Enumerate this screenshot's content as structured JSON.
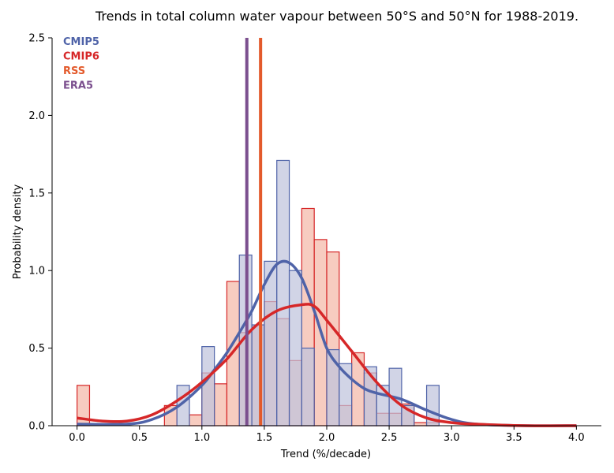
{
  "chart_data": {
    "type": "histogram",
    "title": "Trends in total column water vapour between 50°S and 50°N for 1988-2019.",
    "xlabel": "Trend (%/decade)",
    "ylabel": "Probability density",
    "xlim": [
      -0.2,
      4.2
    ],
    "ylim": [
      0,
      2.5
    ],
    "x_ticks": [
      "0.0",
      "0.5",
      "1.0",
      "1.5",
      "2.0",
      "2.5",
      "3.0",
      "3.5",
      "4.0"
    ],
    "y_ticks": [
      "0.0",
      "0.5",
      "1.0",
      "1.5",
      "2.0",
      "2.5"
    ],
    "bin_width": 0.1,
    "legend": {
      "position": "top-left"
    },
    "series": [
      {
        "name": "CMIP6",
        "color": "#d62728",
        "fill": "#f4b8a8",
        "bins": [
          {
            "x": 0.0,
            "v": 0.26
          },
          {
            "x": 0.7,
            "v": 0.13
          },
          {
            "x": 0.9,
            "v": 0.07
          },
          {
            "x": 1.0,
            "v": 0.34
          },
          {
            "x": 1.1,
            "v": 0.27
          },
          {
            "x": 1.2,
            "v": 0.93
          },
          {
            "x": 1.3,
            "v": 0.6
          },
          {
            "x": 1.4,
            "v": 0.65
          },
          {
            "x": 1.5,
            "v": 0.8
          },
          {
            "x": 1.6,
            "v": 0.69
          },
          {
            "x": 1.7,
            "v": 0.42
          },
          {
            "x": 1.8,
            "v": 1.4
          },
          {
            "x": 1.9,
            "v": 1.2
          },
          {
            "x": 2.0,
            "v": 1.12
          },
          {
            "x": 2.1,
            "v": 0.13
          },
          {
            "x": 2.2,
            "v": 0.47
          },
          {
            "x": 2.3,
            "v": 0.34
          },
          {
            "x": 2.4,
            "v": 0.08
          },
          {
            "x": 2.5,
            "v": 0.08
          },
          {
            "x": 2.6,
            "v": 0.14
          },
          {
            "x": 2.7,
            "v": 0.02
          },
          {
            "x": 2.8,
            "v": 0.02
          }
        ],
        "kde": [
          [
            -0.0,
            0.05
          ],
          [
            0.2,
            0.03
          ],
          [
            0.4,
            0.03
          ],
          [
            0.6,
            0.07
          ],
          [
            0.8,
            0.16
          ],
          [
            1.0,
            0.28
          ],
          [
            1.2,
            0.43
          ],
          [
            1.4,
            0.62
          ],
          [
            1.6,
            0.74
          ],
          [
            1.8,
            0.78
          ],
          [
            1.9,
            0.77
          ],
          [
            2.0,
            0.68
          ],
          [
            2.2,
            0.48
          ],
          [
            2.4,
            0.28
          ],
          [
            2.6,
            0.13
          ],
          [
            2.8,
            0.05
          ],
          [
            3.0,
            0.02
          ],
          [
            3.2,
            0.01
          ],
          [
            3.6,
            0.0
          ],
          [
            4.0,
            0.0
          ]
        ]
      },
      {
        "name": "CMIP5",
        "color": "#4f63a8",
        "fill": "#bfc3dd",
        "bins": [
          {
            "x": 0.8,
            "v": 0.26
          },
          {
            "x": 1.0,
            "v": 0.51
          },
          {
            "x": 1.3,
            "v": 1.1
          },
          {
            "x": 1.4,
            "v": 0.65
          },
          {
            "x": 1.5,
            "v": 1.06
          },
          {
            "x": 1.6,
            "v": 1.71
          },
          {
            "x": 1.7,
            "v": 1.0
          },
          {
            "x": 1.8,
            "v": 0.5
          },
          {
            "x": 2.0,
            "v": 0.49
          },
          {
            "x": 2.1,
            "v": 0.4
          },
          {
            "x": 2.3,
            "v": 0.38
          },
          {
            "x": 2.4,
            "v": 0.26
          },
          {
            "x": 2.5,
            "v": 0.37
          },
          {
            "x": 2.6,
            "v": 0.13
          },
          {
            "x": 2.8,
            "v": 0.26
          }
        ],
        "kde": [
          [
            -0.0,
            0.01
          ],
          [
            0.4,
            0.01
          ],
          [
            0.6,
            0.04
          ],
          [
            0.8,
            0.12
          ],
          [
            1.0,
            0.26
          ],
          [
            1.1,
            0.36
          ],
          [
            1.2,
            0.47
          ],
          [
            1.3,
            0.6
          ],
          [
            1.4,
            0.74
          ],
          [
            1.5,
            0.91
          ],
          [
            1.6,
            1.04
          ],
          [
            1.7,
            1.05
          ],
          [
            1.8,
            0.95
          ],
          [
            1.9,
            0.74
          ],
          [
            2.0,
            0.5
          ],
          [
            2.1,
            0.38
          ],
          [
            2.2,
            0.3
          ],
          [
            2.3,
            0.24
          ],
          [
            2.4,
            0.21
          ],
          [
            2.6,
            0.17
          ],
          [
            2.8,
            0.1
          ],
          [
            3.0,
            0.04
          ],
          [
            3.2,
            0.01
          ],
          [
            3.6,
            0.0
          ],
          [
            4.0,
            0.0
          ]
        ]
      }
    ],
    "reference_lines": [
      {
        "name": "RSS",
        "x": 1.47,
        "color": "#e35a2b"
      },
      {
        "name": "ERA5",
        "x": 1.36,
        "color": "#7b4f8e"
      }
    ]
  }
}
